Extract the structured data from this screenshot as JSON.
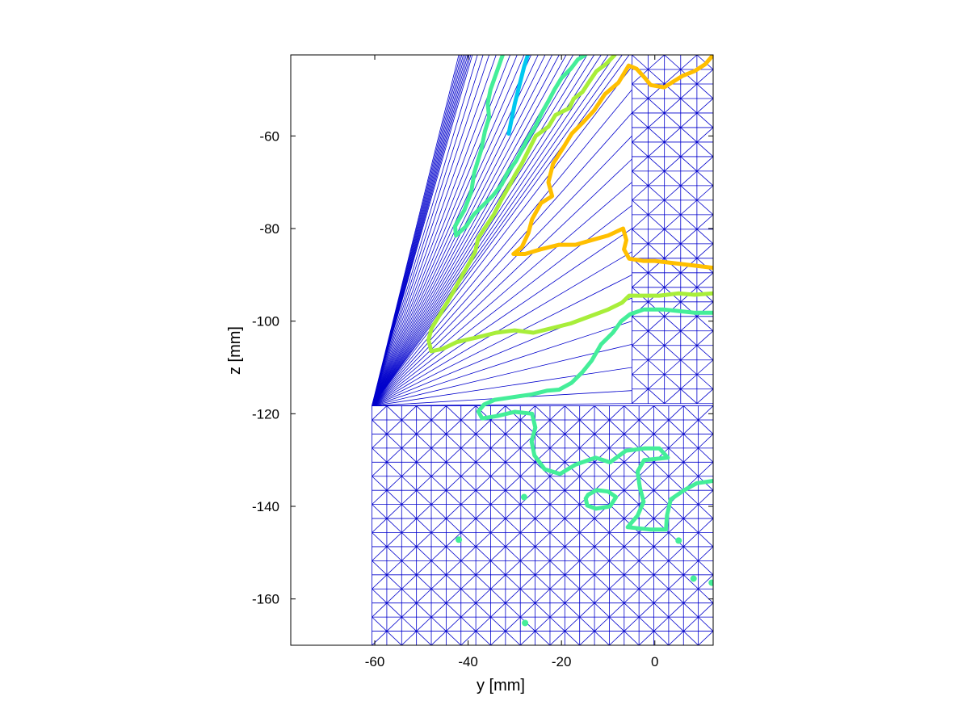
{
  "chart_data": {
    "type": "contour",
    "xlabel": "y [mm]",
    "ylabel": "z [mm]",
    "xlim": [
      -78,
      12.5
    ],
    "ylim": [
      -170,
      -42.5
    ],
    "xticks": [
      -60,
      -40,
      -20,
      0
    ],
    "yticks": [
      -60,
      -80,
      -100,
      -120,
      -140,
      -160
    ],
    "grid": false,
    "mesh": {
      "color": "#0000cc",
      "tip_point": [
        -60.6,
        -118.3
      ],
      "upper_block": {
        "x": [
          -4.9,
          12.5
        ],
        "y": [
          -117.8,
          -42.5
        ]
      },
      "lower_block": {
        "x": [
          -60.6,
          12.5
        ],
        "y": [
          -170,
          -118.3
        ]
      },
      "fan_lines_to_top": [
        -39.1,
        -38.0,
        -36.8,
        -35.5,
        -34.0,
        -32.5,
        -31.0,
        -29.5,
        -28.0,
        -26.5,
        -25.0,
        -23.5,
        -22.0,
        -20.5,
        -19.0,
        -17.5,
        -16.0,
        -14.5,
        -13.0,
        -11.5,
        -10.0,
        -8.5,
        -7.0,
        -5.5
      ],
      "fan_lines_to_side": [
        -45,
        -50,
        -55,
        -60,
        -65,
        -70,
        -75,
        -80,
        -85,
        -90,
        -95,
        -100,
        -105,
        -110,
        -115
      ]
    },
    "series": [
      {
        "color": "#00c8f0",
        "points": [
          [
            -27.2,
            -42.5
          ],
          [
            -28.0,
            -45
          ],
          [
            -29.0,
            -49
          ],
          [
            -30.0,
            -53
          ],
          [
            -30.7,
            -56.5
          ],
          [
            -31.3,
            -59.5
          ]
        ]
      },
      {
        "color": "#44ee99",
        "points": [
          [
            -32.6,
            -42.5
          ],
          [
            -33.8,
            -46
          ],
          [
            -35.2,
            -50
          ],
          [
            -35.8,
            -53
          ],
          [
            -35.5,
            -56
          ],
          [
            -36.4,
            -59
          ],
          [
            -37.2,
            -63
          ],
          [
            -38.7,
            -68
          ],
          [
            -39.3,
            -72
          ],
          [
            -40.8,
            -76
          ],
          [
            -42.8,
            -79.5
          ],
          [
            -42.6,
            -81.5
          ],
          [
            -40.4,
            -79.5
          ],
          [
            -38.8,
            -77
          ],
          [
            -36.8,
            -75
          ],
          [
            -34.8,
            -73
          ],
          [
            -32.8,
            -70.5
          ],
          [
            -31.6,
            -68
          ],
          [
            -29.8,
            -65.5
          ],
          [
            -28.5,
            -63
          ],
          [
            -27.2,
            -60.5
          ],
          [
            -25.6,
            -58
          ],
          [
            -24.2,
            -55
          ],
          [
            -22.8,
            -52.5
          ],
          [
            -21.5,
            -50
          ],
          [
            -20.0,
            -47.5
          ],
          [
            -18.0,
            -45.5
          ],
          [
            -16.5,
            -43.5
          ],
          [
            -14.9,
            -42.5
          ]
        ]
      },
      {
        "color": "#a8ee3a",
        "points": [
          [
            -8.6,
            -42.5
          ],
          [
            -10.5,
            -44.5
          ],
          [
            -12.5,
            -46
          ],
          [
            -14.2,
            -48.5
          ],
          [
            -15.5,
            -50.5
          ],
          [
            -17.4,
            -52
          ],
          [
            -18.3,
            -54
          ],
          [
            -21.3,
            -55.5
          ],
          [
            -22.8,
            -58
          ],
          [
            -25.5,
            -60
          ],
          [
            -27.0,
            -63
          ],
          [
            -28.5,
            -66
          ],
          [
            -30.0,
            -68.5
          ],
          [
            -31.3,
            -71
          ],
          [
            -33.0,
            -74
          ],
          [
            -34.5,
            -77
          ],
          [
            -36.5,
            -80
          ],
          [
            -37.8,
            -82
          ],
          [
            -38.5,
            -85
          ],
          [
            -39.5,
            -87
          ],
          [
            -41.2,
            -90
          ],
          [
            -42.8,
            -93
          ],
          [
            -44.5,
            -96
          ],
          [
            -46.3,
            -99
          ],
          [
            -47.8,
            -101.5
          ],
          [
            -48.5,
            -104
          ],
          [
            -47.9,
            -106.5
          ],
          [
            -45.5,
            -106
          ],
          [
            -42.4,
            -104.5
          ],
          [
            -38.0,
            -103.5
          ],
          [
            -34.0,
            -102.5
          ],
          [
            -30.0,
            -102
          ],
          [
            -26.0,
            -102.5
          ],
          [
            -22.0,
            -101.5
          ],
          [
            -18.0,
            -100.5
          ],
          [
            -14.0,
            -99
          ],
          [
            -10.0,
            -97.5
          ],
          [
            -7.0,
            -96
          ],
          [
            -5.5,
            -94.5
          ],
          [
            -2.4,
            -94.5
          ],
          [
            1.0,
            -94.5
          ],
          [
            5.0,
            -94
          ],
          [
            8.5,
            -94.3
          ],
          [
            12.5,
            -94
          ]
        ]
      },
      {
        "color": "#44ee99",
        "points": [
          [
            12.5,
            -98.2
          ],
          [
            8.6,
            -98.2
          ],
          [
            5.0,
            -97.8
          ],
          [
            2.0,
            -97.5
          ],
          [
            -2.4,
            -97.5
          ],
          [
            -5.3,
            -98.5
          ],
          [
            -7.2,
            -100
          ],
          [
            -9.0,
            -102.5
          ],
          [
            -11.5,
            -105
          ],
          [
            -13.5,
            -108.5
          ],
          [
            -15.5,
            -111
          ],
          [
            -17.8,
            -113.3
          ],
          [
            -20.5,
            -114.8
          ],
          [
            -23.0,
            -115
          ],
          [
            -26.3,
            -115.8
          ],
          [
            -31.0,
            -116.5
          ],
          [
            -34.3,
            -117
          ],
          [
            -36.6,
            -118
          ],
          [
            -37.8,
            -119.5
          ],
          [
            -37.0,
            -121
          ],
          [
            -33.8,
            -120.5
          ],
          [
            -30.0,
            -119.6
          ],
          [
            -26.3,
            -120
          ],
          [
            -25.6,
            -123
          ],
          [
            -26.4,
            -126
          ],
          [
            -25.8,
            -129
          ],
          [
            -23.6,
            -132
          ],
          [
            -20.3,
            -133
          ],
          [
            -17.0,
            -131
          ],
          [
            -12.7,
            -129.5
          ],
          [
            -9.6,
            -130.5
          ],
          [
            -6.2,
            -128
          ],
          [
            -2.3,
            -127.5
          ],
          [
            1.0,
            -127.5
          ],
          [
            2.8,
            -129.5
          ],
          [
            -2.3,
            -130
          ],
          [
            -3.7,
            -132.5
          ],
          [
            -3.2,
            -136
          ],
          [
            -2.4,
            -139
          ],
          [
            -3.7,
            -142
          ],
          [
            -5.8,
            -144.5
          ],
          [
            -1.0,
            -145
          ],
          [
            2.4,
            -145
          ],
          [
            2.6,
            -142
          ],
          [
            3.4,
            -138.5
          ],
          [
            6.3,
            -136.5
          ],
          [
            9.0,
            -135
          ],
          [
            12.5,
            -134.5
          ]
        ]
      },
      {
        "color": "#44ee99",
        "points": [
          [
            -14.3,
            -137.5
          ],
          [
            -12.5,
            -136.5
          ],
          [
            -10.0,
            -136.8
          ],
          [
            -8.3,
            -138
          ],
          [
            -9.6,
            -140
          ],
          [
            -12.6,
            -140.5
          ],
          [
            -14.5,
            -139.8
          ],
          [
            -14.8,
            -138.3
          ],
          [
            -14.3,
            -137.5
          ]
        ]
      },
      {
        "color": "#ffbf00",
        "points": [
          [
            12.5,
            -42.5
          ],
          [
            10.8,
            -44.5
          ],
          [
            8.5,
            -46
          ],
          [
            6.0,
            -47
          ],
          [
            3.9,
            -48.3
          ],
          [
            2.0,
            -49.5
          ],
          [
            -0.9,
            -49
          ],
          [
            -2.1,
            -47.5
          ],
          [
            -3.9,
            -45.5
          ],
          [
            -5.6,
            -44.8
          ],
          [
            -7.8,
            -48.5
          ],
          [
            -10.7,
            -51
          ],
          [
            -13.0,
            -54.5
          ],
          [
            -15.3,
            -57
          ],
          [
            -17.8,
            -59.5
          ],
          [
            -19.6,
            -62.5
          ],
          [
            -21.8,
            -66
          ],
          [
            -22.8,
            -70
          ],
          [
            -22.0,
            -73
          ],
          [
            -24.4,
            -74.5
          ],
          [
            -26.3,
            -78
          ],
          [
            -27.1,
            -81
          ],
          [
            -28.5,
            -84
          ],
          [
            -30.3,
            -85.5
          ],
          [
            -27.8,
            -85.5
          ],
          [
            -24.5,
            -84.5
          ],
          [
            -20.5,
            -83.5
          ],
          [
            -17.0,
            -83.5
          ],
          [
            -13.5,
            -82.5
          ],
          [
            -10.0,
            -81.5
          ],
          [
            -6.8,
            -80
          ],
          [
            -6.1,
            -82.5
          ],
          [
            -6.6,
            -84.5
          ],
          [
            -5.5,
            -86.5
          ],
          [
            -2.4,
            -87
          ],
          [
            0.0,
            -87
          ],
          [
            4.3,
            -87.5
          ],
          [
            8.5,
            -88
          ],
          [
            12.5,
            -88.5
          ]
        ]
      }
    ],
    "markers": [
      {
        "color": "#44ee99",
        "points": [
          [
            -28,
            -138
          ],
          [
            -42,
            -147.2
          ],
          [
            5.1,
            -147.4
          ],
          [
            8.3,
            -155.6
          ],
          [
            12.2,
            -156.5
          ],
          [
            -27.8,
            -165.2
          ]
        ]
      }
    ]
  }
}
